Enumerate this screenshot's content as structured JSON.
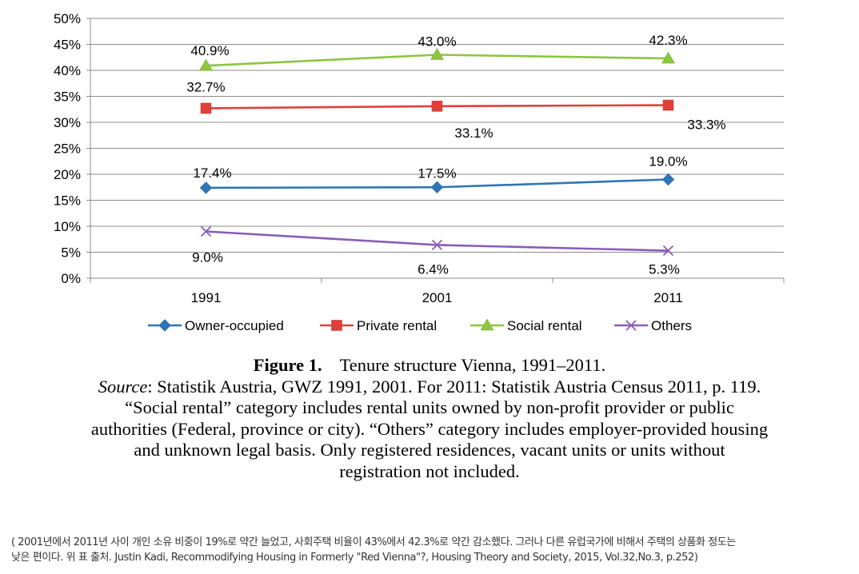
{
  "chart_data": {
    "type": "line",
    "categories": [
      "1991",
      "2001",
      "2011"
    ],
    "ylim": [
      0,
      50
    ],
    "yticks": [
      "0%",
      "5%",
      "10%",
      "15%",
      "20%",
      "25%",
      "30%",
      "35%",
      "40%",
      "45%",
      "50%"
    ],
    "grid": true,
    "legend_position": "bottom",
    "series": [
      {
        "name": "Owner-occupied",
        "values": [
          17.4,
          17.5,
          19.0
        ],
        "labels": [
          "17.4%",
          "17.5%",
          "19.0%"
        ],
        "color": "#2E75B6",
        "marker": "diamond"
      },
      {
        "name": "Private rental",
        "values": [
          32.7,
          33.1,
          33.3
        ],
        "labels": [
          "32.7%",
          "33.1%",
          "33.3%"
        ],
        "color": "#E0403A",
        "marker": "square"
      },
      {
        "name": "Social rental",
        "values": [
          40.9,
          43.0,
          42.3
        ],
        "labels": [
          "40.9%",
          "43.0%",
          "42.3%"
        ],
        "color": "#8DC63F",
        "marker": "triangle"
      },
      {
        "name": "Others",
        "values": [
          9.0,
          6.4,
          5.3
        ],
        "labels": [
          "9.0%",
          "6.4%",
          "5.3%"
        ],
        "color": "#8A5CB8",
        "marker": "x"
      }
    ]
  },
  "caption": {
    "figure_label": "Figure 1.",
    "figure_title": "Tenure structure Vienna, 1991–2011.",
    "source_label": "Source",
    "source_text": ": Statistik Austria, GWZ 1991, 2001. For 2011: Statistik Austria Census 2011, p. 119.",
    "note_line1": "“Social rental” category includes rental units owned by non-profit provider or public",
    "note_line2": "authorities (Federal, province or city). “Others” category includes employer-provided housing",
    "note_line3": "and unknown legal basis. Only registered residences, vacant units or units without",
    "note_line4": "registration not included."
  },
  "footnote": {
    "line1": "( 2001년에서 2011년 사이 개인 소유 비중이 19%로 약간 늘었고, 사회주택 비율이 43%에서 42.3%로 약간 감소했다. 그러나 다른 유럽국가에 비해서 주택의 상품화 정도는",
    "line2": "낮은 편이다.  위 표 출처. Justin Kadi, Recommodifying Housing in Formerly \"Red Vienna\"?, Housing Theory and Society, 2015, Vol.32,No.3, p.252)"
  }
}
